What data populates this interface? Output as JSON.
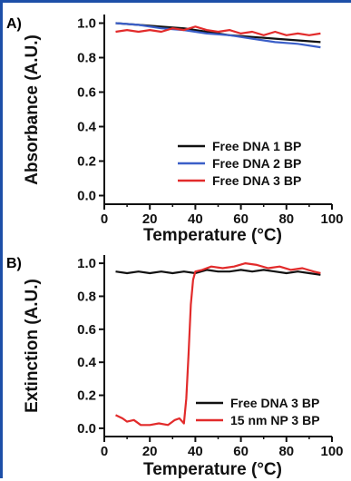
{
  "chart_data": [
    {
      "panel": "A)",
      "type": "line",
      "xlabel": "Temperature (°C)",
      "ylabel": "Absorbance (A.U.)",
      "xlim": [
        0,
        100
      ],
      "ylim": [
        -0.05,
        1.05
      ],
      "xticks": [
        "0",
        "20",
        "40",
        "60",
        "80",
        "100"
      ],
      "yticks": [
        "0.0",
        "0.2",
        "0.4",
        "0.6",
        "0.8",
        "1.0"
      ],
      "legend_position": "bottom-right",
      "series": [
        {
          "name": "Free DNA 1 BP",
          "color": "#111111",
          "x": [
            5,
            15,
            25,
            35,
            45,
            55,
            65,
            75,
            85,
            95
          ],
          "y": [
            1.0,
            0.99,
            0.98,
            0.97,
            0.95,
            0.93,
            0.92,
            0.91,
            0.9,
            0.89
          ]
        },
        {
          "name": "Free DNA 2 BP",
          "color": "#3b5fc8",
          "x": [
            5,
            15,
            25,
            35,
            45,
            55,
            65,
            75,
            85,
            95
          ],
          "y": [
            1.0,
            0.99,
            0.97,
            0.96,
            0.94,
            0.93,
            0.91,
            0.89,
            0.88,
            0.86
          ]
        },
        {
          "name": "Free DNA 3 BP",
          "color": "#e22b2b",
          "x": [
            5,
            10,
            15,
            20,
            25,
            30,
            35,
            40,
            45,
            50,
            55,
            60,
            65,
            70,
            75,
            80,
            85,
            90,
            95
          ],
          "y": [
            0.95,
            0.96,
            0.95,
            0.96,
            0.95,
            0.97,
            0.96,
            0.98,
            0.96,
            0.95,
            0.96,
            0.94,
            0.95,
            0.93,
            0.95,
            0.93,
            0.94,
            0.93,
            0.94
          ]
        }
      ]
    },
    {
      "panel": "B)",
      "type": "line",
      "xlabel": "Temperature (°C)",
      "ylabel": "Extinction (A.U.)",
      "xlim": [
        0,
        100
      ],
      "ylim": [
        -0.05,
        1.05
      ],
      "xticks": [
        "0",
        "20",
        "40",
        "60",
        "80",
        "100"
      ],
      "yticks": [
        "0.0",
        "0.2",
        "0.4",
        "0.6",
        "0.8",
        "1.0"
      ],
      "legend_position": "bottom-right",
      "series": [
        {
          "name": "Free DNA 3 BP",
          "color": "#111111",
          "x": [
            5,
            10,
            15,
            20,
            25,
            30,
            35,
            40,
            45,
            50,
            55,
            60,
            65,
            70,
            75,
            80,
            85,
            90,
            95
          ],
          "y": [
            0.95,
            0.94,
            0.95,
            0.94,
            0.95,
            0.94,
            0.95,
            0.94,
            0.96,
            0.95,
            0.95,
            0.96,
            0.95,
            0.96,
            0.95,
            0.94,
            0.95,
            0.94,
            0.93
          ]
        },
        {
          "name": "15 nm NP 3 BP",
          "color": "#e22b2b",
          "x": [
            5,
            8,
            10,
            13,
            16,
            20,
            24,
            28,
            31,
            33,
            35,
            36,
            37,
            38,
            39,
            40,
            43,
            47,
            52,
            57,
            62,
            67,
            72,
            77,
            82,
            87,
            92,
            95
          ],
          "y": [
            0.08,
            0.06,
            0.04,
            0.05,
            0.02,
            0.02,
            0.03,
            0.02,
            0.05,
            0.06,
            0.03,
            0.18,
            0.45,
            0.75,
            0.9,
            0.95,
            0.96,
            0.98,
            0.97,
            0.98,
            1.0,
            0.99,
            0.97,
            0.98,
            0.96,
            0.97,
            0.95,
            0.94
          ]
        }
      ]
    }
  ]
}
